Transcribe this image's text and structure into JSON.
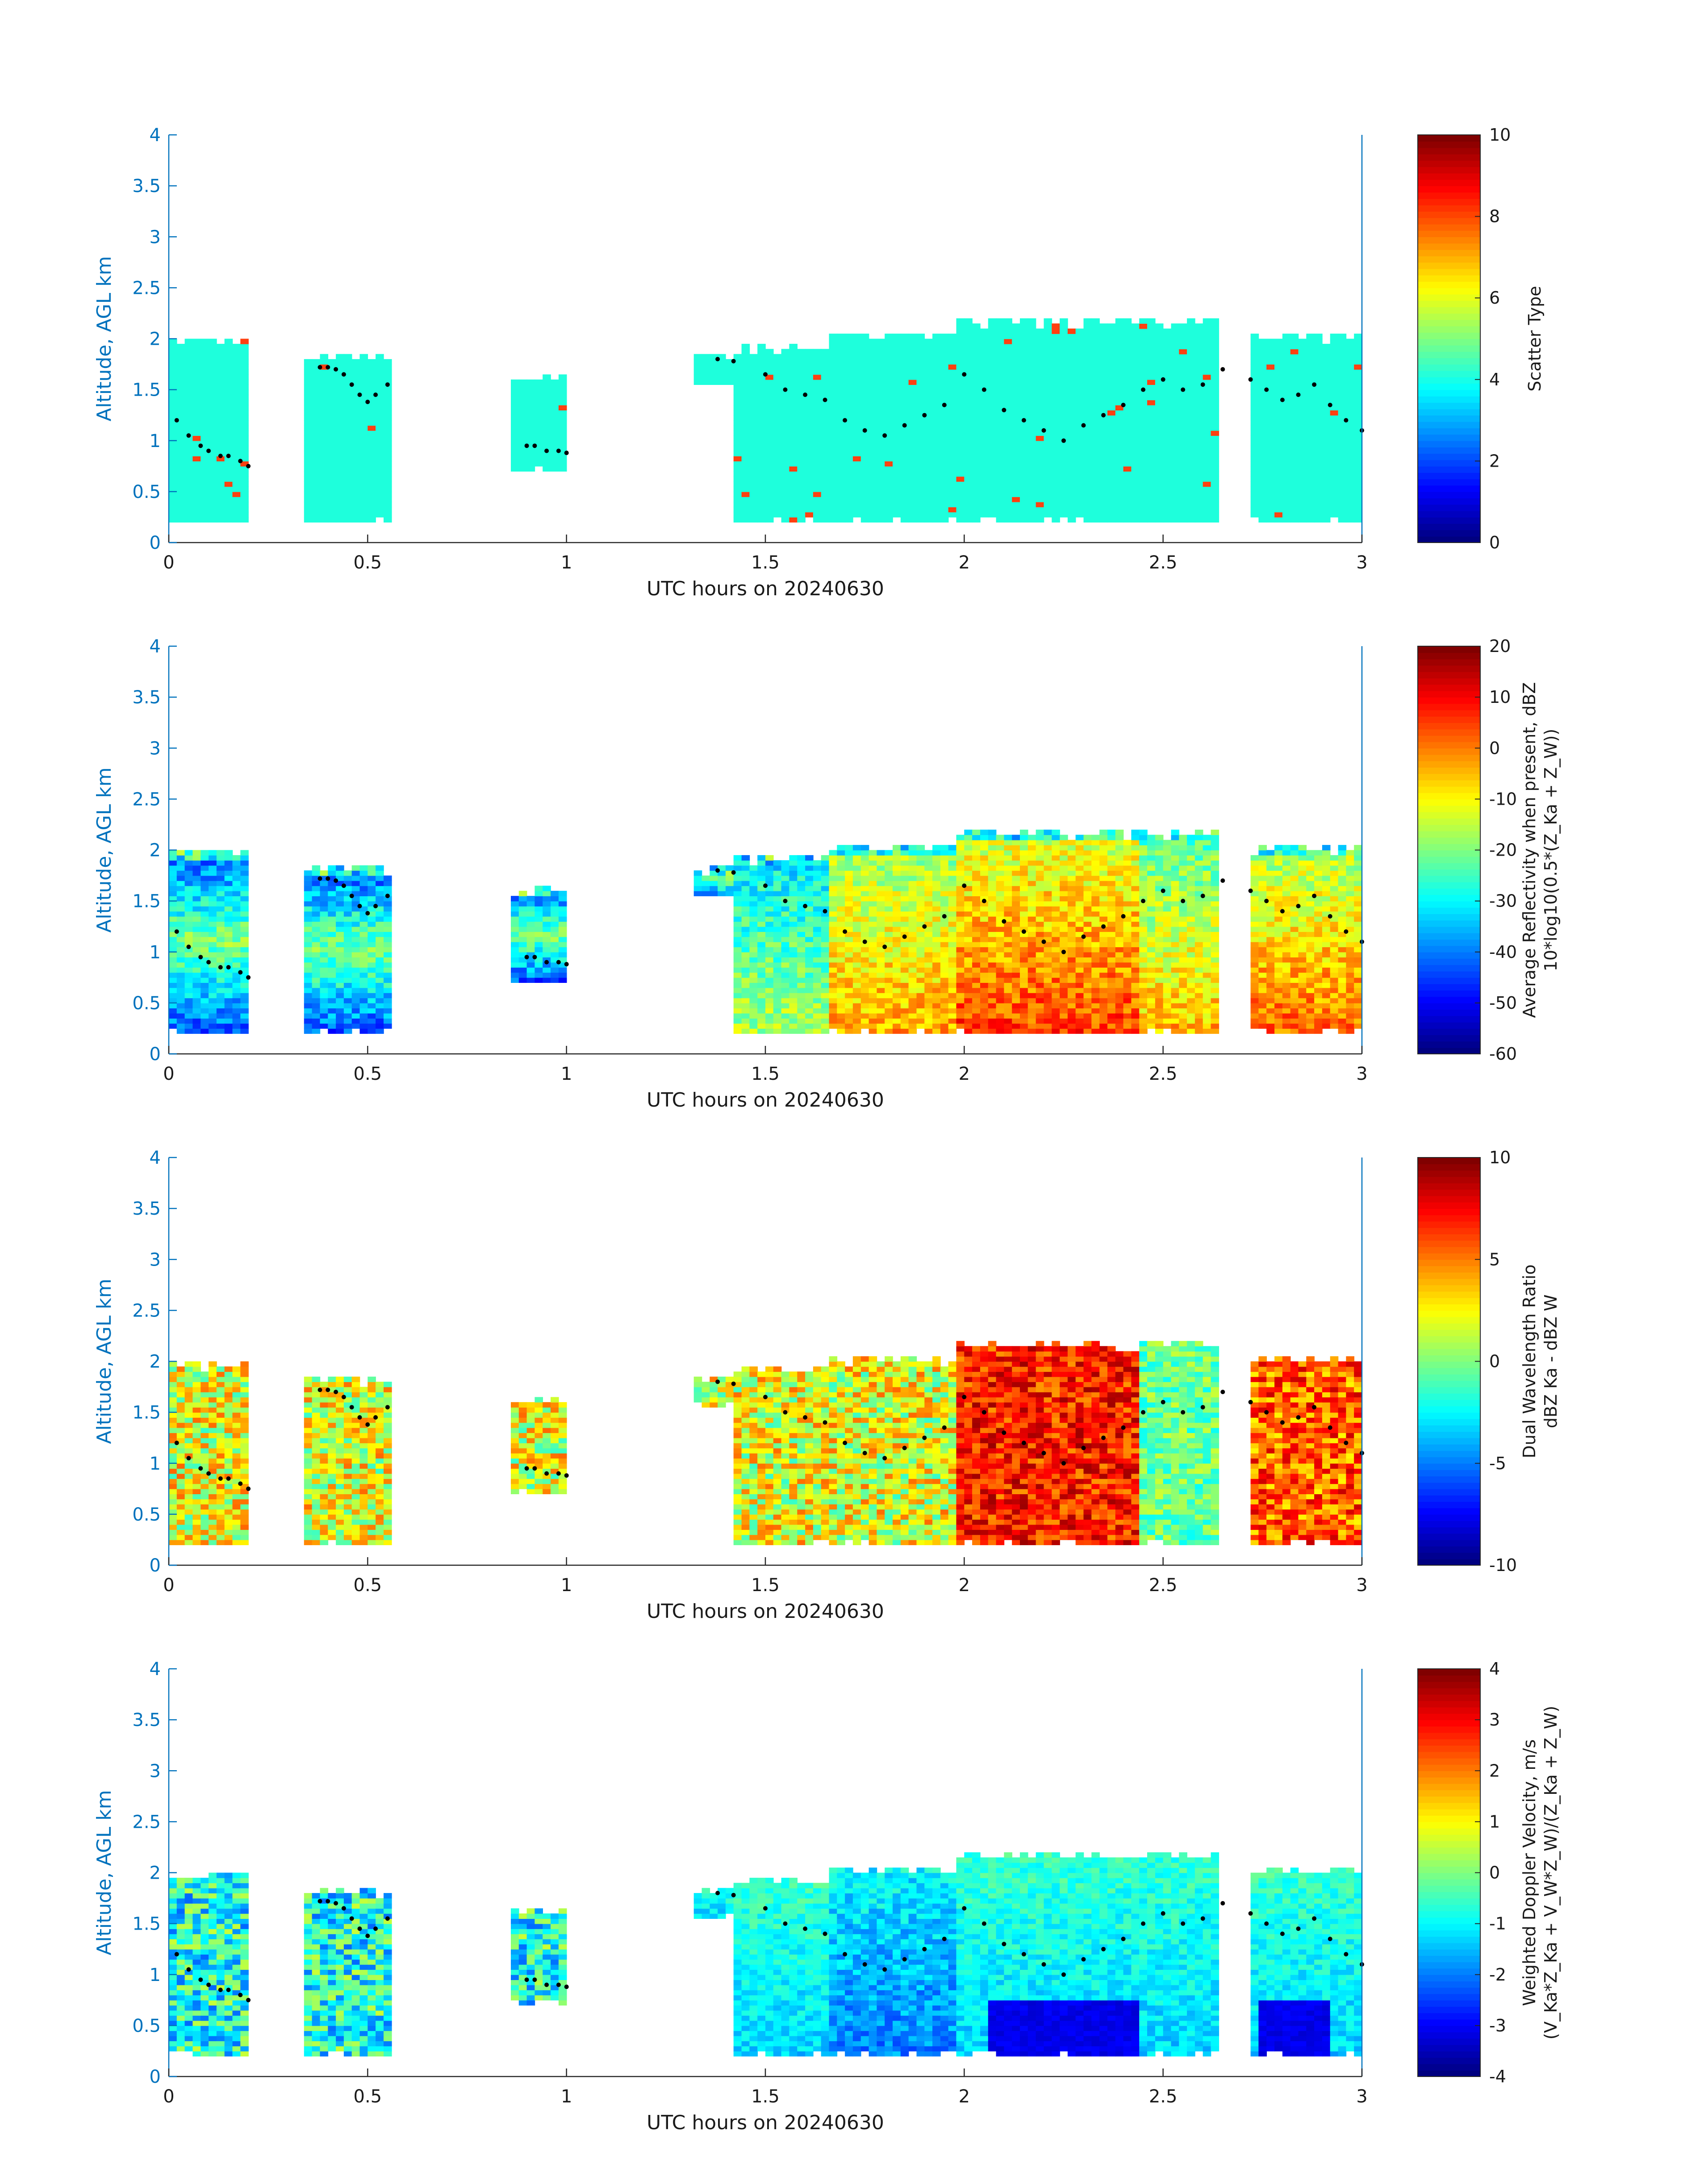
{
  "figure": {
    "xlabel": "UTC hours on 20240630",
    "ylabel": "Altitude, AGL km"
  },
  "chart_data": [
    {
      "type": "heatmap",
      "name": "scatter-type",
      "xlabel": "UTC hours on 20240630",
      "ylabel": "Altitude, AGL km",
      "xlim": [
        0,
        3
      ],
      "ylim": [
        0,
        4
      ],
      "xticks": [
        "0",
        "0.5",
        "1",
        "1.5",
        "2",
        "2.5",
        "3"
      ],
      "yticks": [
        "0",
        "0.5",
        "1",
        "1.5",
        "2",
        "2.5",
        "3",
        "3.5",
        "4"
      ],
      "colorbar": {
        "label_lines": [
          "Scatter Type"
        ],
        "range": [
          0,
          10
        ],
        "ticks": [
          "0",
          "2",
          "4",
          "6",
          "8",
          "10"
        ]
      },
      "colormap": "jet"
    },
    {
      "type": "heatmap",
      "name": "average-reflectivity",
      "xlabel": "UTC hours on 20240630",
      "ylabel": "Altitude, AGL km",
      "xlim": [
        0,
        3
      ],
      "ylim": [
        0,
        4
      ],
      "xticks": [
        "0",
        "0.5",
        "1",
        "1.5",
        "2",
        "2.5",
        "3"
      ],
      "yticks": [
        "0",
        "0.5",
        "1",
        "1.5",
        "2",
        "2.5",
        "3",
        "3.5",
        "4"
      ],
      "colorbar": {
        "label_lines": [
          "Average Reflectivity when present, dBZ",
          "10*log10(0.5*(Z_Ka + Z_W))"
        ],
        "range": [
          -60,
          20
        ],
        "ticks": [
          "-60",
          "-50",
          "-40",
          "-30",
          "-20",
          "-10",
          "0",
          "10",
          "20"
        ]
      },
      "colormap": "jet"
    },
    {
      "type": "heatmap",
      "name": "dual-wavelength-ratio",
      "xlabel": "UTC hours on 20240630",
      "ylabel": "Altitude, AGL km",
      "xlim": [
        0,
        3
      ],
      "ylim": [
        0,
        4
      ],
      "xticks": [
        "0",
        "0.5",
        "1",
        "1.5",
        "2",
        "2.5",
        "3"
      ],
      "yticks": [
        "0",
        "0.5",
        "1",
        "1.5",
        "2",
        "2.5",
        "3",
        "3.5",
        "4"
      ],
      "colorbar": {
        "label_lines": [
          "Dual Wavelength Ratio",
          "dBZ Ka - dBZ W"
        ],
        "range": [
          -10,
          10
        ],
        "ticks": [
          "-10",
          "-5",
          "0",
          "5",
          "10"
        ]
      },
      "colormap": "jet"
    },
    {
      "type": "heatmap",
      "name": "weighted-doppler-velocity",
      "xlabel": "UTC hours on 20240630",
      "ylabel": "Altitude, AGL km",
      "xlim": [
        0,
        3
      ],
      "ylim": [
        0,
        4
      ],
      "xticks": [
        "0",
        "0.5",
        "1",
        "1.5",
        "2",
        "2.5",
        "3"
      ],
      "yticks": [
        "0",
        "0.5",
        "1",
        "1.5",
        "2",
        "2.5",
        "3",
        "3.5",
        "4"
      ],
      "colorbar": {
        "label_lines": [
          "Weighted Doppler Velocity, m/s",
          "(V_Ka*Z_Ka + V_W*Z_W)/(Z_Ka + Z_W)"
        ],
        "range": [
          -4,
          4
        ],
        "ticks": [
          "-4",
          "-3",
          "-2",
          "-1",
          "0",
          "1",
          "2",
          "3",
          "4"
        ]
      },
      "colormap": "jet"
    }
  ],
  "echo_segments": [
    {
      "t0": 0.0,
      "t1": 0.21,
      "bottom": 0.2,
      "top": 2.0
    },
    {
      "t0": 0.35,
      "t1": 0.57,
      "bottom": 0.2,
      "top": 1.85
    },
    {
      "t0": 0.87,
      "t1": 1.0,
      "bottom": 0.7,
      "top": 1.65
    },
    {
      "t0": 1.33,
      "t1": 1.43,
      "bottom": 1.55,
      "top": 1.85
    },
    {
      "t0": 1.43,
      "t1": 1.66,
      "bottom": 0.2,
      "top": 1.95
    },
    {
      "t0": 1.66,
      "t1": 1.99,
      "bottom": 0.2,
      "top": 2.05
    },
    {
      "t0": 1.99,
      "t1": 2.44,
      "bottom": 0.2,
      "top": 2.2
    },
    {
      "t0": 2.44,
      "t1": 2.65,
      "bottom": 0.2,
      "top": 2.2
    },
    {
      "t0": 2.72,
      "t1": 3.0,
      "bottom": 0.2,
      "top": 2.05
    }
  ],
  "cloud_base_dots": {
    "times": [
      0.02,
      0.05,
      0.08,
      0.1,
      0.13,
      0.15,
      0.18,
      0.2,
      0.38,
      0.4,
      0.42,
      0.44,
      0.46,
      0.48,
      0.5,
      0.52,
      0.55,
      0.9,
      0.92,
      0.95,
      0.98,
      1.0,
      1.38,
      1.42,
      1.5,
      1.55,
      1.6,
      1.65,
      1.7,
      1.75,
      1.8,
      1.85,
      1.9,
      1.95,
      2.0,
      2.05,
      2.1,
      2.15,
      2.2,
      2.25,
      2.3,
      2.35,
      2.4,
      2.45,
      2.5,
      2.55,
      2.6,
      2.65,
      2.72,
      2.76,
      2.8,
      2.84,
      2.88,
      2.92,
      2.96,
      3.0
    ],
    "alts": [
      1.2,
      1.05,
      0.95,
      0.9,
      0.85,
      0.85,
      0.8,
      0.75,
      1.72,
      1.72,
      1.7,
      1.65,
      1.55,
      1.45,
      1.38,
      1.45,
      1.55,
      0.95,
      0.95,
      0.9,
      0.9,
      0.88,
      1.8,
      1.78,
      1.65,
      1.5,
      1.45,
      1.4,
      1.2,
      1.1,
      1.05,
      1.15,
      1.25,
      1.35,
      1.65,
      1.5,
      1.3,
      1.2,
      1.1,
      1.0,
      1.15,
      1.25,
      1.35,
      1.5,
      1.6,
      1.5,
      1.55,
      1.7,
      1.6,
      1.5,
      1.4,
      1.45,
      1.55,
      1.35,
      1.2,
      1.1
    ]
  },
  "colors": {
    "axis_blue": "#0072bd",
    "scatter_main": "#1effdc",
    "scatter_minor": "#ff4010"
  }
}
